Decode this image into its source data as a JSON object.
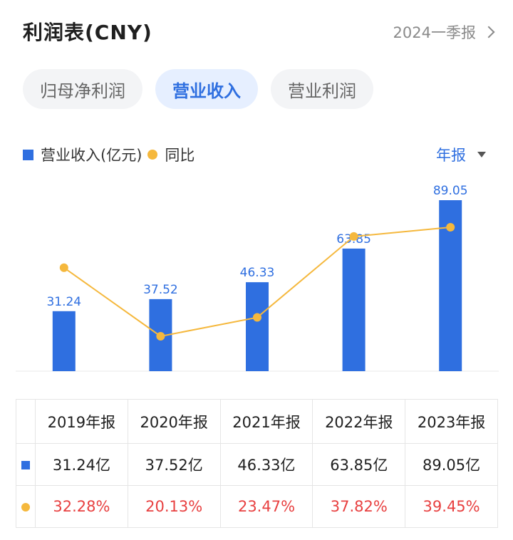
{
  "header": {
    "title": "利润表(CNY)",
    "period": "2024一季报"
  },
  "tabs": [
    {
      "label": "归母净利润",
      "active": false
    },
    {
      "label": "营业收入",
      "active": true
    },
    {
      "label": "营业利润",
      "active": false
    }
  ],
  "legend": {
    "bar_label": "营业收入(亿元)",
    "line_label": "同比",
    "mode": "年报"
  },
  "chart_data": {
    "type": "bar",
    "categories": [
      "2019年报",
      "2020年报",
      "2021年报",
      "2022年报",
      "2023年报"
    ],
    "series": [
      {
        "name": "营业收入(亿元)",
        "type": "bar",
        "values": [
          31.24,
          37.52,
          46.33,
          63.85,
          89.05
        ],
        "labels": [
          "31.24",
          "37.52",
          "46.33",
          "63.85",
          "89.05"
        ],
        "color": "#2f6fe0"
      },
      {
        "name": "同比",
        "type": "line",
        "values": [
          32.28,
          20.13,
          23.47,
          37.82,
          39.45
        ],
        "color": "#f5b83d"
      }
    ]
  },
  "table": {
    "headers": [
      "2019年报",
      "2020年报",
      "2021年报",
      "2022年报",
      "2023年报"
    ],
    "revenue": [
      "31.24亿",
      "37.52亿",
      "46.33亿",
      "63.85亿",
      "89.05亿"
    ],
    "yoy": [
      "32.28%",
      "20.13%",
      "23.47%",
      "37.82%",
      "39.45%"
    ]
  },
  "colors": {
    "accent": "#2f6fe0",
    "line": "#f5b83d",
    "negative_red": "#e84040"
  }
}
